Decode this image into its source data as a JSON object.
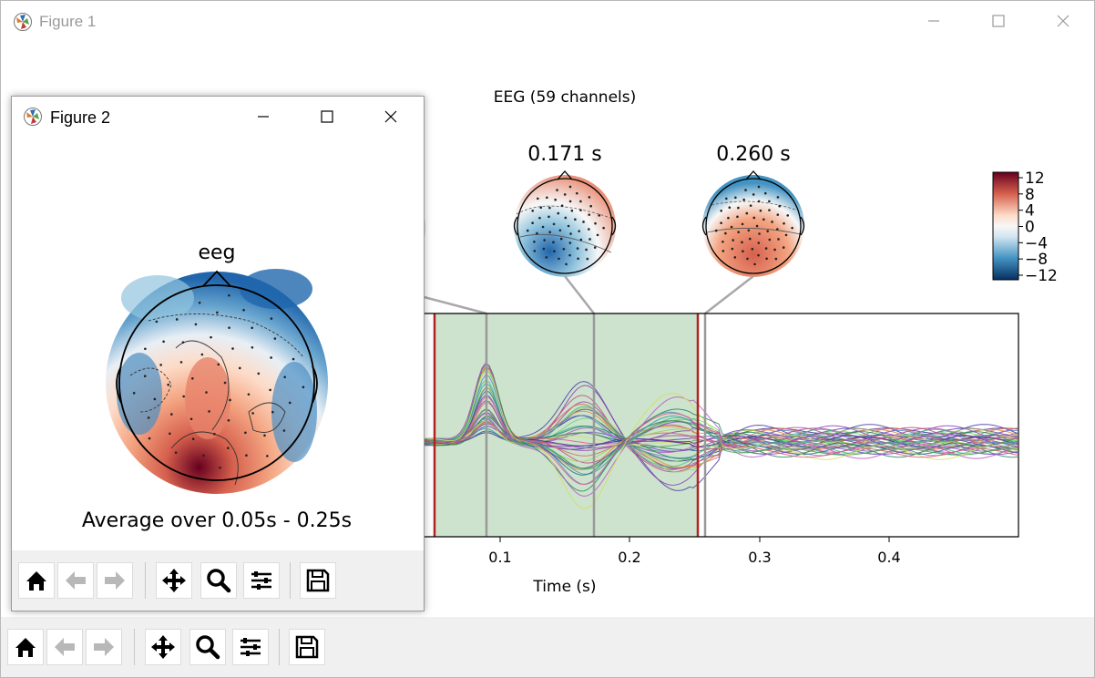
{
  "figure1": {
    "window_title": "Figure 1",
    "plot_title": "EEG (59 channels)",
    "topo_labels": [
      "0.171 s",
      "0.260 s"
    ],
    "colorbar_ticks": [
      "12",
      "8",
      "4",
      "0",
      "−4",
      "−8",
      "−12"
    ],
    "x_ticks": [
      "0.1",
      "0.2",
      "0.3",
      "0.4"
    ],
    "xlabel": "Time (s)"
  },
  "figure2": {
    "window_title": "Figure 2",
    "topo_title": "eeg",
    "caption": "Average over 0.05s - 0.25s"
  },
  "toolbar_icons": [
    "home-icon",
    "back-icon",
    "forward-icon",
    "pan-icon",
    "zoom-icon",
    "configure-icon",
    "save-icon"
  ],
  "colors": {
    "selection_fill": "#cde3cd",
    "selection_border": "#b22222",
    "positive": "#b2182b",
    "negative": "#2166ac",
    "connector": "#a8a8a8"
  }
}
